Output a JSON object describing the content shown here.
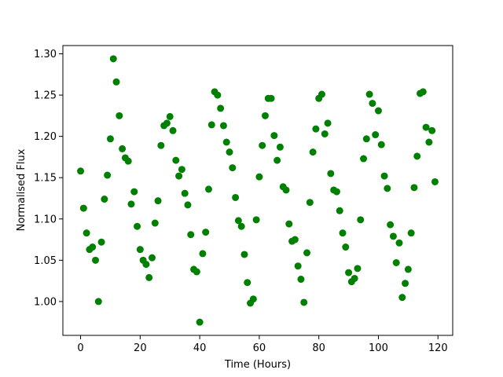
{
  "chart_data": {
    "type": "scatter",
    "xlabel": "Time (Hours)",
    "ylabel": "Normalised Flux",
    "xlim": [
      -5.95,
      124.95
    ],
    "ylim": [
      0.959,
      1.31
    ],
    "xticks": [
      0,
      20,
      40,
      60,
      80,
      100,
      120
    ],
    "yticks": [
      1.0,
      1.05,
      1.1,
      1.15,
      1.2,
      1.25,
      1.3
    ],
    "xtick_labels": [
      "0",
      "20",
      "40",
      "60",
      "80",
      "100",
      "120"
    ],
    "ytick_labels": [
      "1.00",
      "1.05",
      "1.10",
      "1.15",
      "1.20",
      "1.25",
      "1.30"
    ],
    "grid": false,
    "marker_color": "#008000",
    "series": [
      {
        "x": [
          0,
          1,
          2,
          3,
          4,
          5,
          6,
          7,
          8,
          9,
          10,
          11,
          12,
          13,
          14,
          15,
          16,
          17,
          18,
          19,
          20,
          21,
          22,
          23,
          24,
          25,
          26,
          27,
          28,
          29,
          30,
          31,
          32,
          33,
          34,
          35,
          36,
          37,
          38,
          39,
          40,
          41,
          42,
          43,
          44,
          45,
          46,
          47,
          48,
          49,
          50,
          51,
          52,
          53,
          54,
          55,
          56,
          57,
          58,
          59,
          60,
          61,
          62,
          63,
          64,
          65,
          66,
          67,
          68,
          69,
          70,
          71,
          72,
          73,
          74,
          75,
          76,
          77,
          78,
          79,
          80,
          81,
          82,
          83,
          84,
          85,
          86,
          87,
          88,
          89,
          90,
          91,
          92,
          93,
          94,
          95,
          96,
          97,
          98,
          99,
          100,
          101,
          102,
          103,
          104,
          105,
          106,
          107,
          108,
          109,
          110,
          111,
          112,
          113,
          114,
          115,
          116,
          117,
          118,
          119
        ],
        "y": [
          1.158,
          1.113,
          1.083,
          1.063,
          1.066,
          1.05,
          1.0,
          1.072,
          1.124,
          1.153,
          1.197,
          1.294,
          1.266,
          1.225,
          1.185,
          1.174,
          1.17,
          1.118,
          1.133,
          1.091,
          1.063,
          1.05,
          1.045,
          1.029,
          1.053,
          1.095,
          1.122,
          1.189,
          1.213,
          1.216,
          1.224,
          1.207,
          1.171,
          1.152,
          1.16,
          1.131,
          1.117,
          1.081,
          1.039,
          1.036,
          0.975,
          1.058,
          1.084,
          1.136,
          1.214,
          1.254,
          1.25,
          1.234,
          1.213,
          1.193,
          1.181,
          1.162,
          1.126,
          1.098,
          1.091,
          1.057,
          1.023,
          0.998,
          1.003,
          1.099,
          1.151,
          1.189,
          1.225,
          1.246,
          1.246,
          1.201,
          1.171,
          1.187,
          1.139,
          1.135,
          1.094,
          1.073,
          1.075,
          1.043,
          1.027,
          0.999,
          1.059,
          1.12,
          1.181,
          1.209,
          1.246,
          1.251,
          1.203,
          1.216,
          1.155,
          1.135,
          1.133,
          1.11,
          1.083,
          1.066,
          1.035,
          1.024,
          1.028,
          1.04,
          1.099,
          1.173,
          1.197,
          1.251,
          1.24,
          1.202,
          1.231,
          1.19,
          1.152,
          1.137,
          1.093,
          1.079,
          1.047,
          1.071,
          1.005,
          1.022,
          1.039,
          1.083,
          1.138,
          1.176,
          1.252,
          1.254,
          1.211,
          1.193,
          1.207,
          1.145
        ]
      }
    ]
  }
}
